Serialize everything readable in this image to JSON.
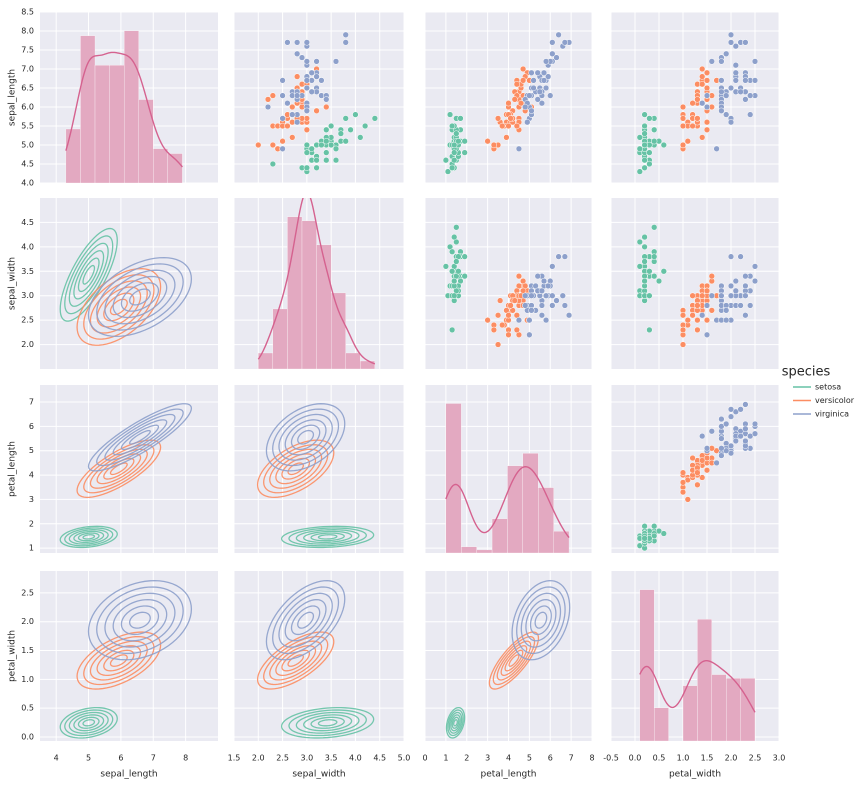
{
  "chart_data": {
    "type": "pairplot",
    "variables": [
      "sepal_length",
      "sepal_width",
      "petal_length",
      "petal_width"
    ],
    "axes": [
      {
        "xlim": [
          3.5,
          9.0
        ],
        "xticks": [
          4,
          5,
          6,
          7,
          8
        ],
        "ylim": [
          4.0,
          8.5
        ],
        "yticks": [
          {
            "value": 4.0,
            "label": "4.0"
          },
          4.5,
          {
            "value": 5.0,
            "label": "5.0"
          },
          5.5,
          {
            "value": 6.0,
            "label": "6.0"
          },
          6.5,
          {
            "value": 7.0,
            "label": "7.0"
          },
          7.5,
          {
            "value": 8.0,
            "label": "8.0"
          },
          8.5
        ]
      },
      {
        "xlim": [
          1.5,
          5.0
        ],
        "xticks": [
          1.5,
          {
            "value": 2.0,
            "label": "2.0"
          },
          2.5,
          {
            "value": 3.0,
            "label": "3.0"
          },
          3.5,
          {
            "value": 4.0,
            "label": "4.0"
          },
          4.5,
          {
            "value": 5.0,
            "label": "5.0"
          }
        ],
        "ylim": [
          1.5,
          5.0
        ],
        "yticks": [
          {
            "value": 2.0,
            "label": "2.0"
          },
          2.5,
          {
            "value": 3.0,
            "label": "3.0"
          },
          3.5,
          {
            "value": 4.0,
            "label": "4.0"
          },
          4.5
        ]
      },
      {
        "xlim": [
          0,
          8
        ],
        "xticks": [
          0,
          1,
          2,
          3,
          4,
          5,
          6,
          7,
          8
        ],
        "ylim": [
          0.8,
          7.7
        ],
        "yticks": [
          1,
          2,
          3,
          4,
          5,
          6,
          7
        ]
      },
      {
        "xlim": [
          -0.5,
          3.0
        ],
        "xticks": [
          -0.5,
          {
            "value": 0.0,
            "label": "0.0"
          },
          0.5,
          {
            "value": 1.0,
            "label": "1.0"
          },
          1.5,
          {
            "value": 2.0,
            "label": "2.0"
          },
          2.5,
          {
            "value": 3.0,
            "label": "3.0"
          }
        ],
        "ylim": [
          -0.07,
          2.88
        ],
        "yticks": [
          {
            "value": 0.0,
            "label": "0.0"
          },
          0.5,
          {
            "value": 1.0,
            "label": "1.0"
          },
          1.5,
          {
            "value": 2.0,
            "label": "2.0"
          },
          2.5
        ]
      }
    ],
    "hist_color": "#e3a9c1",
    "kde_color": "#d5628f",
    "histograms": [
      {
        "bins": [
          4.3,
          4.75,
          5.2,
          5.65,
          6.1,
          6.55,
          7.0,
          7.45,
          7.9
        ],
        "counts": [
          11,
          30,
          24,
          24,
          31,
          17,
          7,
          6
        ]
      },
      {
        "bins": [
          2.0,
          2.3,
          2.6,
          2.9,
          3.2,
          3.5,
          3.8,
          4.1,
          4.4
        ],
        "counts": [
          4,
          15,
          38,
          37,
          31,
          19,
          4,
          2
        ]
      },
      {
        "bins": [
          1.0,
          1.7375,
          2.475,
          3.2125,
          3.95,
          4.6875,
          5.425,
          6.1625,
          6.9
        ],
        "counts": [
          48,
          2,
          1,
          11,
          28,
          32,
          21,
          7
        ]
      },
      {
        "bins": [
          0.1,
          0.4,
          0.7,
          1.0,
          1.3,
          1.6,
          1.9,
          2.2,
          2.5
        ],
        "counts": [
          41,
          9,
          0,
          15,
          33,
          18,
          17,
          17
        ]
      }
    ],
    "legend_title": "species",
    "series": [
      {
        "name": "setosa",
        "color": "#66c2a5",
        "values": [
          [
            5.1,
            4.9,
            4.7,
            4.6,
            5.0,
            5.4,
            4.6,
            5.0,
            4.4,
            4.9,
            5.4,
            4.8,
            4.8,
            4.3,
            5.8,
            5.7,
            5.4,
            5.1,
            5.7,
            5.1,
            5.4,
            5.1,
            4.6,
            5.1,
            4.8,
            5.0,
            5.0,
            5.2,
            5.2,
            4.7,
            4.8,
            5.4,
            5.2,
            5.5,
            4.9,
            5.0,
            5.5,
            4.9,
            4.4,
            5.1,
            5.0,
            4.5,
            4.4,
            5.0,
            5.1,
            4.8,
            5.1,
            4.6,
            5.3,
            5.0
          ],
          [
            3.5,
            3.0,
            3.2,
            3.1,
            3.6,
            3.9,
            3.4,
            3.4,
            2.9,
            3.1,
            3.7,
            3.4,
            3.0,
            3.0,
            4.0,
            4.4,
            3.9,
            3.5,
            3.8,
            3.8,
            3.4,
            3.7,
            3.6,
            3.3,
            3.4,
            3.0,
            3.4,
            3.5,
            3.4,
            3.2,
            3.1,
            3.4,
            4.1,
            4.2,
            3.1,
            3.2,
            3.5,
            3.6,
            3.0,
            3.4,
            3.5,
            2.3,
            3.2,
            3.5,
            3.8,
            3.0,
            3.8,
            3.2,
            3.7,
            3.3
          ],
          [
            1.4,
            1.4,
            1.3,
            1.5,
            1.4,
            1.7,
            1.4,
            1.5,
            1.4,
            1.5,
            1.5,
            1.6,
            1.4,
            1.1,
            1.2,
            1.5,
            1.3,
            1.4,
            1.7,
            1.5,
            1.7,
            1.5,
            1.0,
            1.7,
            1.9,
            1.6,
            1.6,
            1.5,
            1.4,
            1.6,
            1.6,
            1.5,
            1.5,
            1.4,
            1.5,
            1.2,
            1.3,
            1.4,
            1.3,
            1.5,
            1.3,
            1.3,
            1.3,
            1.6,
            1.9,
            1.4,
            1.6,
            1.4,
            1.5,
            1.4
          ],
          [
            0.2,
            0.2,
            0.2,
            0.2,
            0.2,
            0.4,
            0.3,
            0.2,
            0.2,
            0.1,
            0.2,
            0.2,
            0.1,
            0.1,
            0.2,
            0.4,
            0.4,
            0.3,
            0.3,
            0.3,
            0.2,
            0.4,
            0.2,
            0.5,
            0.2,
            0.2,
            0.4,
            0.2,
            0.2,
            0.2,
            0.2,
            0.4,
            0.1,
            0.2,
            0.2,
            0.2,
            0.2,
            0.1,
            0.2,
            0.2,
            0.3,
            0.3,
            0.2,
            0.6,
            0.4,
            0.3,
            0.2,
            0.2,
            0.2,
            0.2
          ]
        ]
      },
      {
        "name": "versicolor",
        "color": "#fc8d62",
        "values": [
          [
            7.0,
            6.4,
            6.9,
            5.5,
            6.5,
            5.7,
            6.3,
            4.9,
            6.6,
            5.2,
            5.0,
            5.9,
            6.0,
            6.1,
            5.6,
            6.7,
            5.6,
            5.8,
            6.2,
            5.6,
            5.9,
            6.1,
            6.3,
            6.1,
            6.4,
            6.6,
            6.8,
            6.7,
            6.0,
            5.7,
            5.5,
            5.5,
            5.8,
            6.0,
            5.4,
            6.0,
            6.7,
            6.3,
            5.6,
            5.5,
            5.5,
            6.1,
            5.8,
            5.0,
            5.6,
            5.7,
            5.7,
            6.2,
            5.1,
            5.7
          ],
          [
            3.2,
            3.2,
            3.1,
            2.3,
            2.8,
            2.8,
            3.3,
            2.4,
            2.9,
            2.7,
            2.0,
            3.0,
            2.2,
            2.9,
            2.9,
            3.1,
            3.0,
            2.7,
            2.2,
            2.5,
            3.2,
            2.8,
            2.5,
            2.8,
            2.9,
            3.0,
            2.8,
            3.0,
            2.9,
            2.6,
            2.4,
            2.4,
            2.7,
            2.7,
            3.0,
            3.4,
            3.1,
            2.3,
            3.0,
            2.5,
            2.6,
            3.0,
            2.6,
            2.3,
            2.7,
            3.0,
            2.9,
            2.9,
            2.5,
            2.8
          ],
          [
            4.7,
            4.5,
            4.9,
            4.0,
            4.6,
            4.5,
            4.7,
            3.3,
            4.6,
            3.9,
            3.5,
            4.2,
            4.0,
            4.7,
            3.6,
            4.4,
            4.5,
            4.1,
            4.5,
            3.9,
            4.8,
            4.0,
            4.9,
            4.7,
            4.3,
            4.4,
            4.8,
            5.0,
            4.5,
            3.5,
            3.8,
            3.7,
            3.9,
            5.1,
            4.5,
            4.5,
            4.7,
            4.4,
            4.1,
            4.0,
            4.4,
            4.6,
            4.0,
            3.3,
            4.2,
            4.2,
            4.2,
            4.3,
            3.0,
            4.1
          ],
          [
            1.4,
            1.5,
            1.5,
            1.3,
            1.5,
            1.3,
            1.6,
            1.0,
            1.3,
            1.4,
            1.0,
            1.5,
            1.0,
            1.4,
            1.3,
            1.4,
            1.5,
            1.0,
            1.5,
            1.1,
            1.8,
            1.3,
            1.5,
            1.2,
            1.3,
            1.4,
            1.4,
            1.7,
            1.5,
            1.0,
            1.1,
            1.0,
            1.2,
            1.6,
            1.5,
            1.6,
            1.5,
            1.3,
            1.3,
            1.3,
            1.2,
            1.4,
            1.2,
            1.0,
            1.3,
            1.2,
            1.3,
            1.3,
            1.1,
            1.3
          ]
        ]
      },
      {
        "name": "virginica",
        "color": "#8da0cb",
        "values": [
          [
            6.3,
            5.8,
            7.1,
            6.3,
            6.5,
            7.6,
            4.9,
            7.3,
            6.7,
            7.2,
            6.5,
            6.4,
            6.8,
            5.7,
            5.8,
            6.4,
            6.5,
            7.7,
            7.7,
            6.0,
            6.9,
            5.6,
            7.7,
            6.3,
            6.7,
            7.2,
            6.2,
            6.1,
            6.4,
            7.2,
            7.4,
            7.9,
            6.4,
            6.3,
            6.1,
            7.7,
            6.3,
            6.4,
            6.0,
            6.9,
            6.7,
            6.9,
            5.8,
            6.8,
            6.7,
            6.7,
            6.3,
            6.5,
            6.2,
            5.9
          ],
          [
            3.3,
            2.7,
            3.0,
            2.9,
            3.0,
            3.0,
            2.5,
            2.9,
            2.5,
            3.6,
            3.2,
            2.7,
            3.0,
            2.5,
            2.8,
            3.2,
            3.0,
            3.8,
            2.6,
            2.2,
            3.2,
            2.8,
            2.8,
            2.7,
            3.3,
            3.2,
            2.8,
            3.0,
            2.8,
            3.0,
            2.8,
            3.8,
            2.8,
            2.8,
            2.6,
            3.0,
            3.4,
            3.1,
            3.0,
            3.1,
            3.1,
            3.1,
            2.7,
            3.2,
            3.3,
            3.0,
            2.5,
            3.0,
            3.4,
            3.0
          ],
          [
            6.0,
            5.1,
            5.9,
            5.6,
            5.8,
            6.6,
            4.5,
            6.3,
            5.8,
            6.1,
            5.1,
            5.3,
            5.5,
            5.0,
            5.1,
            5.3,
            5.5,
            6.7,
            6.9,
            5.0,
            5.7,
            4.9,
            6.7,
            4.9,
            5.7,
            6.0,
            4.8,
            4.9,
            5.6,
            5.8,
            6.1,
            6.4,
            5.6,
            5.1,
            5.6,
            6.1,
            5.6,
            5.5,
            4.8,
            5.4,
            5.6,
            5.1,
            5.1,
            5.9,
            5.7,
            5.2,
            5.0,
            5.2,
            5.4,
            5.1
          ],
          [
            2.5,
            1.9,
            2.1,
            1.8,
            2.2,
            2.1,
            1.7,
            1.8,
            1.8,
            2.5,
            2.0,
            1.9,
            2.1,
            2.0,
            2.4,
            2.3,
            1.8,
            2.2,
            2.3,
            1.5,
            2.3,
            2.0,
            2.0,
            1.8,
            2.1,
            1.8,
            1.8,
            1.8,
            2.1,
            1.6,
            1.9,
            2.0,
            2.2,
            1.5,
            1.4,
            2.3,
            2.4,
            1.8,
            1.8,
            2.1,
            2.4,
            2.3,
            1.9,
            2.3,
            2.5,
            2.3,
            1.9,
            2.0,
            2.3,
            1.8
          ]
        ]
      }
    ]
  }
}
